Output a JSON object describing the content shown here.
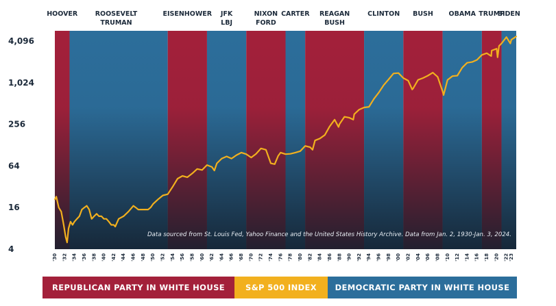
{
  "colors": {
    "republican": "#a3203a",
    "democratic": "#2c6e9b",
    "sp500": "#f2b01e",
    "dark": "#1c2a3a"
  },
  "chart_data": {
    "type": "line",
    "x_scale": "year",
    "y_scale": "log2",
    "ylim": [
      4,
      5800
    ],
    "yticks": [
      "4",
      "16",
      "64",
      "256",
      "1,024",
      "4,096"
    ],
    "ytick_values": [
      4,
      16,
      64,
      256,
      1024,
      4096
    ],
    "xlim": [
      1930,
      2024
    ],
    "xticks": [
      "'30",
      "'32",
      "'34",
      "'36",
      "'38",
      "'40",
      "'42",
      "'44",
      "'46",
      "'48",
      "'50",
      "'52",
      "'54",
      "'56",
      "'58",
      "'60",
      "'62",
      "'64",
      "'66",
      "'68",
      "'70",
      "'72",
      "'74",
      "'76",
      "'78",
      "'80",
      "'82",
      "'84",
      "'86",
      "'88",
      "'90",
      "'92",
      "'94",
      "'96",
      "'98",
      "'00",
      "'02",
      "'04",
      "'06",
      "'08",
      "'10",
      "'12",
      "'14",
      "'16",
      "'18",
      "'20",
      "'22",
      "'23"
    ],
    "xtick_values": [
      1930,
      1932,
      1934,
      1936,
      1938,
      1940,
      1942,
      1944,
      1946,
      1948,
      1950,
      1952,
      1954,
      1956,
      1958,
      1960,
      1962,
      1964,
      1966,
      1968,
      1970,
      1972,
      1974,
      1976,
      1978,
      1980,
      1982,
      1984,
      1986,
      1988,
      1990,
      1992,
      1994,
      1996,
      1998,
      2000,
      2002,
      2004,
      2006,
      2008,
      2010,
      2012,
      2014,
      2016,
      2018,
      2020,
      2022,
      2023
    ],
    "periods": [
      {
        "start": 1930,
        "end": 1933,
        "party": "republican"
      },
      {
        "start": 1933,
        "end": 1953,
        "party": "democratic"
      },
      {
        "start": 1953,
        "end": 1961,
        "party": "republican"
      },
      {
        "start": 1961,
        "end": 1969,
        "party": "democratic"
      },
      {
        "start": 1969,
        "end": 1977,
        "party": "republican"
      },
      {
        "start": 1977,
        "end": 1981,
        "party": "democratic"
      },
      {
        "start": 1981,
        "end": 1993,
        "party": "republican"
      },
      {
        "start": 1993,
        "end": 2001,
        "party": "democratic"
      },
      {
        "start": 2001,
        "end": 2009,
        "party": "republican"
      },
      {
        "start": 2009,
        "end": 2017,
        "party": "democratic"
      },
      {
        "start": 2017,
        "end": 2021,
        "party": "republican"
      },
      {
        "start": 2021,
        "end": 2024,
        "party": "democratic"
      }
    ],
    "presidents": [
      {
        "lines": [
          "HOOVER"
        ],
        "x": 1931.5
      },
      {
        "lines": [
          "ROOSEVELT",
          "TRUMAN"
        ],
        "x": 1942.5
      },
      {
        "lines": [
          "EISENHOWER"
        ],
        "x": 1957
      },
      {
        "lines": [
          "JFK",
          "LBJ"
        ],
        "x": 1965
      },
      {
        "lines": [
          "NIXON",
          "FORD"
        ],
        "x": 1973
      },
      {
        "lines": [
          "CARTER"
        ],
        "x": 1979
      },
      {
        "lines": [
          "REAGAN",
          "BUSH"
        ],
        "x": 1987
      },
      {
        "lines": [
          "CLINTON"
        ],
        "x": 1997
      },
      {
        "lines": [
          "BUSH"
        ],
        "x": 2005
      },
      {
        "lines": [
          "OBAMA"
        ],
        "x": 2013
      },
      {
        "lines": [
          "TRUMP"
        ],
        "x": 2019
      },
      {
        "lines": [
          "BIDEN"
        ],
        "x": 2022.5
      }
    ],
    "series": [
      {
        "x": [
          1930,
          1930.3,
          1930.8,
          1931.3,
          1931.8,
          1932.2,
          1932.5,
          1932.8,
          1933.2,
          1933.6,
          1934,
          1934.5,
          1935,
          1935.5,
          1936,
          1936.5,
          1937,
          1937.5,
          1938,
          1938.5,
          1939,
          1939.5,
          1940,
          1940.5,
          1941,
          1941.5,
          1942,
          1942.3,
          1943,
          1944,
          1945,
          1946,
          1946.5,
          1947,
          1948,
          1949,
          1949.5,
          1950,
          1951,
          1952,
          1953,
          1954,
          1955,
          1956,
          1957,
          1958,
          1959,
          1960,
          1961,
          1962,
          1962.5,
          1963,
          1964,
          1965,
          1966,
          1967,
          1968,
          1969,
          1970,
          1971,
          1972,
          1973,
          1974,
          1974.8,
          1975.5,
          1976,
          1977,
          1978,
          1979,
          1980,
          1981,
          1982,
          1982.5,
          1983,
          1984,
          1985,
          1986,
          1987,
          1987.8,
          1988,
          1989,
          1990,
          1990.8,
          1991,
          1992,
          1993,
          1994,
          1995,
          1996,
          1997,
          1998,
          1999,
          2000,
          2001,
          2002,
          2002.8,
          2003,
          2004,
          2005,
          2006,
          2007,
          2008,
          2009,
          2009.2,
          2010,
          2011,
          2012,
          2013,
          2014,
          2015,
          2016,
          2017,
          2018,
          2018.9,
          2019,
          2020,
          2020.2,
          2020.5,
          2021,
          2022,
          2022.8,
          2023,
          2024
        ],
        "y": [
          21,
          23,
          16,
          14,
          9,
          6,
          5,
          8,
          10,
          9,
          10,
          11,
          12,
          15,
          16,
          17,
          15,
          11,
          12,
          13,
          12,
          12,
          11,
          11,
          10,
          9,
          9,
          8.5,
          11,
          12,
          14,
          17,
          16,
          15,
          15,
          15,
          16,
          18,
          21,
          24,
          25,
          32,
          42,
          46,
          44,
          50,
          58,
          56,
          66,
          62,
          55,
          70,
          82,
          88,
          82,
          92,
          100,
          95,
          85,
          96,
          115,
          110,
          70,
          68,
          90,
          100,
          95,
          96,
          100,
          105,
          125,
          120,
          110,
          150,
          160,
          180,
          240,
          300,
          235,
          260,
          330,
          320,
          300,
          360,
          420,
          450,
          460,
          600,
          740,
          950,
          1150,
          1400,
          1420,
          1200,
          1100,
          820,
          850,
          1130,
          1200,
          1300,
          1440,
          1250,
          770,
          680,
          1130,
          1280,
          1300,
          1700,
          2000,
          2050,
          2200,
          2600,
          2750,
          2500,
          3000,
          3200,
          2400,
          3500,
          3800,
          4700,
          3800,
          4300,
          4800
        ]
      }
    ],
    "source_note": "Data sourced from St. Louis Fed, Yahoo Finance and the United States History Archive. Data from Jan. 2, 1930-Jan. 3, 2024.",
    "legend": [
      {
        "label": "REPUBLICAN PARTY IN WHITE HOUSE",
        "color": "#a3203a"
      },
      {
        "label": "S&P 500 INDEX",
        "color": "#f2b01e"
      },
      {
        "label": "DEMOCRATIC PARTY IN WHITE HOUSE",
        "color": "#2c6e9b"
      }
    ]
  }
}
